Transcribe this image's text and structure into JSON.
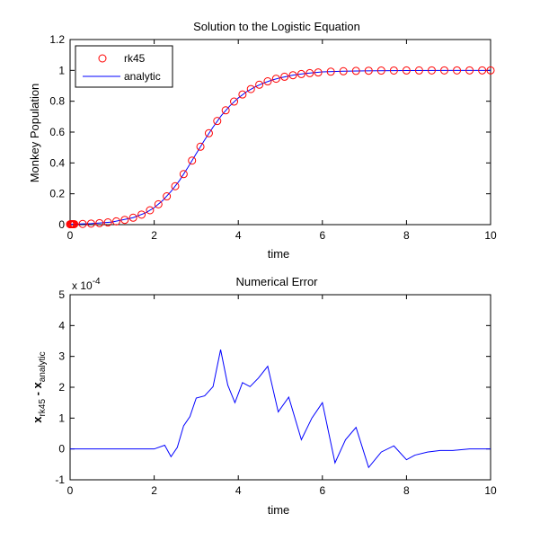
{
  "chart_data": [
    {
      "type": "scatter",
      "title": "Solution to the Logistic Equation",
      "xlabel": "time",
      "ylabel": "Monkey Population",
      "xlim": [
        0,
        10
      ],
      "ylim": [
        0,
        1.2
      ],
      "xticks": [
        "0",
        "2",
        "4",
        "6",
        "8",
        "10"
      ],
      "yticks": [
        "0",
        "0.2",
        "0.4",
        "0.6",
        "0.8",
        "1",
        "1.2"
      ],
      "grid": false,
      "legend": {
        "placement": "top-left",
        "entries": [
          "rk45",
          "analytic"
        ]
      },
      "colors": {
        "rk45": "#ff0000",
        "analytic": "#0000ff"
      },
      "series": [
        {
          "name": "rk45",
          "marker": "circle",
          "x": [
            0,
            0.02,
            0.04,
            0.06,
            0.08,
            0.1,
            0.3,
            0.5,
            0.7,
            0.9,
            1.1,
            1.3,
            1.5,
            1.7,
            1.9,
            2.1,
            2.3,
            2.5,
            2.7,
            2.9,
            3.1,
            3.3,
            3.5,
            3.7,
            3.9,
            4.1,
            4.3,
            4.5,
            4.7,
            4.9,
            5.1,
            5.3,
            5.5,
            5.7,
            5.9,
            6.2,
            6.5,
            6.8,
            7.1,
            7.4,
            7.7,
            8.0,
            8.3,
            8.6,
            8.9,
            9.2,
            9.5,
            9.8,
            10.0
          ],
          "y": [
            0.0025,
            0.0026,
            0.0027,
            0.0029,
            0.003,
            0.0031,
            0.0045,
            0.0066,
            0.0098,
            0.0144,
            0.0211,
            0.0309,
            0.045,
            0.065,
            0.0932,
            0.1318,
            0.1834,
            0.249,
            0.3275,
            0.4151,
            0.5052,
            0.5925,
            0.672,
            0.7411,
            0.798,
            0.8436,
            0.8791,
            0.9072,
            0.929,
            0.946,
            0.9588,
            0.9687,
            0.9762,
            0.982,
            0.9863,
            0.9914,
            0.9946,
            0.9966,
            0.9979,
            0.9987,
            0.9992,
            0.9995,
            0.9997,
            0.9998,
            0.9999,
            0.9999,
            1.0,
            1.0,
            1.0
          ]
        },
        {
          "name": "analytic",
          "marker": "line",
          "x": [
            0,
            0.5,
            1.0,
            1.5,
            1.8,
            2.0,
            2.2,
            2.4,
            2.6,
            2.8,
            3.0,
            3.2,
            3.4,
            3.6,
            3.8,
            4.0,
            4.2,
            4.4,
            4.6,
            4.8,
            5.0,
            5.3,
            5.6,
            6.0,
            6.5,
            7.0,
            8.0,
            9.0,
            10.0
          ],
          "y": [
            0.0025,
            0.0066,
            0.0169,
            0.045,
            0.077,
            0.11,
            0.156,
            0.215,
            0.285,
            0.37,
            0.46,
            0.549,
            0.632,
            0.708,
            0.77,
            0.821,
            0.862,
            0.893,
            0.918,
            0.937,
            0.952,
            0.969,
            0.98,
            0.99,
            0.995,
            0.997,
            0.999,
            1.0,
            1.0
          ]
        }
      ]
    },
    {
      "type": "line",
      "title": "Numerical Error",
      "xlabel": "time",
      "ylabel": "x_rk45 - x_analytic",
      "ylabel_main": "x",
      "ylabel_sub1": "rk45",
      "ylabel_mid": " - x",
      "ylabel_sub2": "analytic",
      "y_multiplier": "x 10",
      "y_multiplier_exp": "-4",
      "xlim": [
        0,
        10
      ],
      "ylim": [
        -1,
        5
      ],
      "xticks": [
        "0",
        "2",
        "4",
        "6",
        "8",
        "10"
      ],
      "yticks": [
        "-1",
        "0",
        "1",
        "2",
        "3",
        "4",
        "5"
      ],
      "grid": false,
      "colors": {
        "line": "#0000ff"
      },
      "series": [
        {
          "x": [
            0,
            2.0,
            2.25,
            2.4,
            2.55,
            2.7,
            2.85,
            3.0,
            3.2,
            3.4,
            3.58,
            3.75,
            3.92,
            4.1,
            4.28,
            4.48,
            4.7,
            4.95,
            5.2,
            5.5,
            5.75,
            6.0,
            6.3,
            6.55,
            6.8,
            7.1,
            7.4,
            7.7,
            8.0,
            8.2,
            8.5,
            8.8,
            9.1,
            9.5,
            10.0
          ],
          "y": [
            0.0,
            0.0,
            0.12,
            -0.25,
            0.05,
            0.75,
            1.05,
            1.65,
            1.72,
            2.02,
            3.22,
            2.07,
            1.5,
            2.15,
            2.02,
            2.3,
            2.68,
            1.2,
            1.68,
            0.3,
            1.0,
            1.5,
            -0.45,
            0.3,
            0.7,
            -0.6,
            -0.1,
            0.1,
            -0.35,
            -0.2,
            -0.1,
            -0.05,
            -0.05,
            0.0,
            0.0
          ]
        }
      ]
    }
  ]
}
